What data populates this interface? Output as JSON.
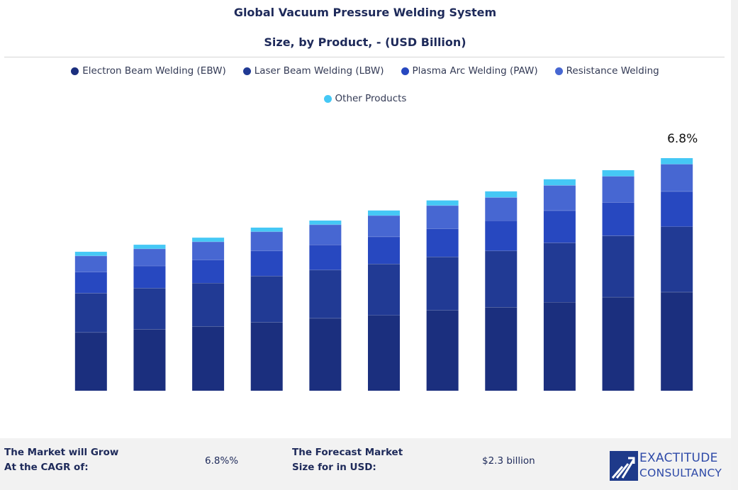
{
  "chart_data": {
    "type": "stacked-bar",
    "title": [
      "Global Vacuum Pressure Welding System",
      "Size, by Product, - (USD Billion)"
    ],
    "categories": [
      null,
      null,
      null,
      null,
      null,
      null,
      null,
      null,
      null,
      null,
      null
    ],
    "series": [
      {
        "name": "Electron Beam Welding (EBW)",
        "color": "#1b2f7e",
        "values": [
          0.58,
          0.61,
          0.64,
          0.68,
          0.72,
          0.75,
          0.8,
          0.83,
          0.88,
          0.93,
          0.98
        ]
      },
      {
        "name": "Laser Beam Welding (LBW)",
        "color": "#213a94",
        "values": [
          0.39,
          0.41,
          0.43,
          0.46,
          0.48,
          0.51,
          0.53,
          0.56,
          0.59,
          0.61,
          0.65
        ]
      },
      {
        "name": "Plasma Arc Welding (PAW)",
        "color": "#2748c0",
        "values": [
          0.21,
          0.22,
          0.23,
          0.25,
          0.25,
          0.27,
          0.28,
          0.3,
          0.32,
          0.33,
          0.35
        ]
      },
      {
        "name": "Resistance Welding",
        "color": "#4767d2",
        "values": [
          0.16,
          0.17,
          0.18,
          0.19,
          0.2,
          0.21,
          0.23,
          0.23,
          0.25,
          0.26,
          0.27
        ]
      },
      {
        "name": "Other Products",
        "color": "#45c8f5",
        "values": [
          0.04,
          0.04,
          0.04,
          0.04,
          0.04,
          0.05,
          0.05,
          0.06,
          0.06,
          0.06,
          0.06
        ]
      }
    ],
    "ylim": [
      0,
      2.5
    ],
    "annotation": "6.8%"
  },
  "footer": {
    "cagr_label": [
      "The Market will Grow",
      "At the CAGR of:"
    ],
    "cagr_value": "6.8%%",
    "forecast_label": [
      "The Forecast Market",
      "Size for in USD:"
    ],
    "forecast_value": "$2.3 billion",
    "logo": [
      "EXACTITUDE",
      "CONSULTANCY"
    ]
  }
}
